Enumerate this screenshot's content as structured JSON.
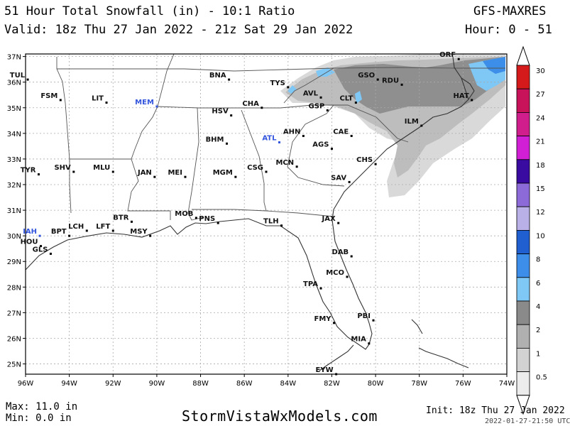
{
  "header": {
    "title": "51 Hour Total Snowfall (in) - 10:1 Ratio",
    "valid": "Valid: 18z Thu 27 Jan 2022 - 21z Sat 29 Jan 2022",
    "model": "GFS-MAXRES",
    "hours": "Hour: 0 - 51"
  },
  "axes": {
    "lat_labels": [
      "37N",
      "36N",
      "35N",
      "34N",
      "33N",
      "32N",
      "31N",
      "30N",
      "29N",
      "28N",
      "27N",
      "26N",
      "25N"
    ],
    "lon_labels": [
      "96W",
      "94W",
      "92W",
      "90W",
      "88W",
      "86W",
      "84W",
      "82W",
      "80W",
      "78W",
      "76W",
      "74W"
    ]
  },
  "cities": [
    {
      "name": "TUL",
      "lon": -95.9,
      "lat": 36.1
    },
    {
      "name": "FSM",
      "lon": -94.4,
      "lat": 35.3
    },
    {
      "name": "LIT",
      "lon": -92.3,
      "lat": 35.2
    },
    {
      "name": "MEM",
      "lon": -90.0,
      "lat": 35.05,
      "hl": true
    },
    {
      "name": "BNA",
      "lon": -86.7,
      "lat": 36.1
    },
    {
      "name": "TYS",
      "lon": -84.0,
      "lat": 35.8
    },
    {
      "name": "GSO",
      "lon": -79.9,
      "lat": 36.1
    },
    {
      "name": "RDU",
      "lon": -78.8,
      "lat": 35.9
    },
    {
      "name": "ORF",
      "lon": -76.2,
      "lat": 36.9
    },
    {
      "name": "AVL",
      "lon": -82.5,
      "lat": 35.4
    },
    {
      "name": "CLT",
      "lon": -80.9,
      "lat": 35.2
    },
    {
      "name": "HAT",
      "lon": -75.6,
      "lat": 35.3
    },
    {
      "name": "CHA",
      "lon": -85.2,
      "lat": 35.0
    },
    {
      "name": "GSP",
      "lon": -82.2,
      "lat": 34.9
    },
    {
      "name": "HSV",
      "lon": -86.6,
      "lat": 34.7
    },
    {
      "name": "ILM",
      "lon": -77.9,
      "lat": 34.3
    },
    {
      "name": "AHN",
      "lon": -83.3,
      "lat": 33.9
    },
    {
      "name": "CAE",
      "lon": -81.1,
      "lat": 33.9
    },
    {
      "name": "ATL",
      "lon": -84.4,
      "lat": 33.65,
      "hl": true
    },
    {
      "name": "BHM",
      "lon": -86.8,
      "lat": 33.6
    },
    {
      "name": "AGS",
      "lon": -82.0,
      "lat": 33.4
    },
    {
      "name": "CHS",
      "lon": -80.0,
      "lat": 32.8
    },
    {
      "name": "TYR",
      "lon": -95.4,
      "lat": 32.4
    },
    {
      "name": "SHV",
      "lon": -93.8,
      "lat": 32.5
    },
    {
      "name": "MLU",
      "lon": -92.0,
      "lat": 32.5
    },
    {
      "name": "JAN",
      "lon": -90.1,
      "lat": 32.3
    },
    {
      "name": "MEI",
      "lon": -88.7,
      "lat": 32.3
    },
    {
      "name": "MGM",
      "lon": -86.4,
      "lat": 32.3
    },
    {
      "name": "CSG",
      "lon": -85.0,
      "lat": 32.5
    },
    {
      "name": "MCN",
      "lon": -83.6,
      "lat": 32.7
    },
    {
      "name": "SAV",
      "lon": -81.2,
      "lat": 32.1
    },
    {
      "name": "BTR",
      "lon": -91.15,
      "lat": 30.55
    },
    {
      "name": "MOB",
      "lon": -88.2,
      "lat": 30.7
    },
    {
      "name": "PNS",
      "lon": -87.2,
      "lat": 30.5
    },
    {
      "name": "TLH",
      "lon": -84.3,
      "lat": 30.4
    },
    {
      "name": "JAX",
      "lon": -81.7,
      "lat": 30.5
    },
    {
      "name": "LCH",
      "lon": -93.2,
      "lat": 30.2
    },
    {
      "name": "LFT",
      "lon": -92.0,
      "lat": 30.2
    },
    {
      "name": "MSY",
      "lon": -90.3,
      "lat": 30.0
    },
    {
      "name": "IAH",
      "lon": -95.35,
      "lat": 30.0,
      "hl": true
    },
    {
      "name": "BPT",
      "lon": -94.0,
      "lat": 30.0
    },
    {
      "name": "HOU",
      "lon": -95.3,
      "lat": 29.6
    },
    {
      "name": "GLS",
      "lon": -94.85,
      "lat": 29.3
    },
    {
      "name": "DAB",
      "lon": -81.1,
      "lat": 29.2
    },
    {
      "name": "MCO",
      "lon": -81.3,
      "lat": 28.4
    },
    {
      "name": "TPA",
      "lon": -82.5,
      "lat": 27.95
    },
    {
      "name": "FMY",
      "lon": -81.9,
      "lat": 26.6
    },
    {
      "name": "PBI",
      "lon": -80.1,
      "lat": 26.7
    },
    {
      "name": "MIA",
      "lon": -80.3,
      "lat": 25.8
    },
    {
      "name": "EYW",
      "lon": -81.8,
      "lat": 24.6
    }
  ],
  "legend": {
    "levels": [
      "30",
      "27",
      "24",
      "21",
      "18",
      "15",
      "12",
      "10",
      "8",
      "6",
      "4",
      "2",
      "1",
      "0.5"
    ],
    "colors": [
      "#d41a1a",
      "#c8135a",
      "#d01e8c",
      "#d11fd6",
      "#3a0ba0",
      "#8c6ad8",
      "#b9b0e8",
      "#1f5fd0",
      "#3c8ee8",
      "#7fc7f5",
      "#8a8a8a",
      "#b0b0b0",
      "#d2d2d2",
      "#ececec"
    ]
  },
  "footer": {
    "max": "Max: 11.0 in",
    "min": "Min: 0.0 in",
    "site": "StormVistaWxModels.com",
    "init": "Init: 18z Thu 27 Jan 2022",
    "timestamp": "2022-01-27-21:50 UTC"
  }
}
